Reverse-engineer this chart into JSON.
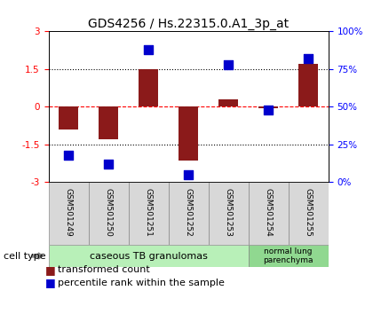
{
  "title": "GDS4256 / Hs.22315.0.A1_3p_at",
  "samples": [
    "GSM501249",
    "GSM501250",
    "GSM501251",
    "GSM501252",
    "GSM501253",
    "GSM501254",
    "GSM501255"
  ],
  "transformed_count": [
    -0.9,
    -1.3,
    1.48,
    -2.15,
    0.28,
    -0.05,
    1.72
  ],
  "percentile_rank": [
    18,
    12,
    88,
    5,
    78,
    48,
    82
  ],
  "ylim_left": [
    -3,
    3
  ],
  "ylim_right": [
    0,
    100
  ],
  "yticks_left": [
    -3,
    -1.5,
    0,
    1.5,
    3
  ],
  "yticks_right": [
    0,
    25,
    50,
    75,
    100
  ],
  "ytick_labels_right": [
    "0%",
    "25%",
    "50%",
    "75%",
    "100%"
  ],
  "bar_color": "#8B1A1A",
  "dot_color": "#0000CD",
  "bar_width": 0.5,
  "dot_size": 45,
  "group1_label": "caseous TB granulomas",
  "group2_label": "normal lung\nparenchyma",
  "group1_color": "#b8f0b8",
  "group2_color": "#90d890",
  "cell_type_label": "cell type",
  "legend_bar_label": "transformed count",
  "legend_dot_label": "percentile rank within the sample",
  "title_fontsize": 10,
  "tick_fontsize": 7.5,
  "legend_fontsize": 8,
  "sample_fontsize": 6.5
}
